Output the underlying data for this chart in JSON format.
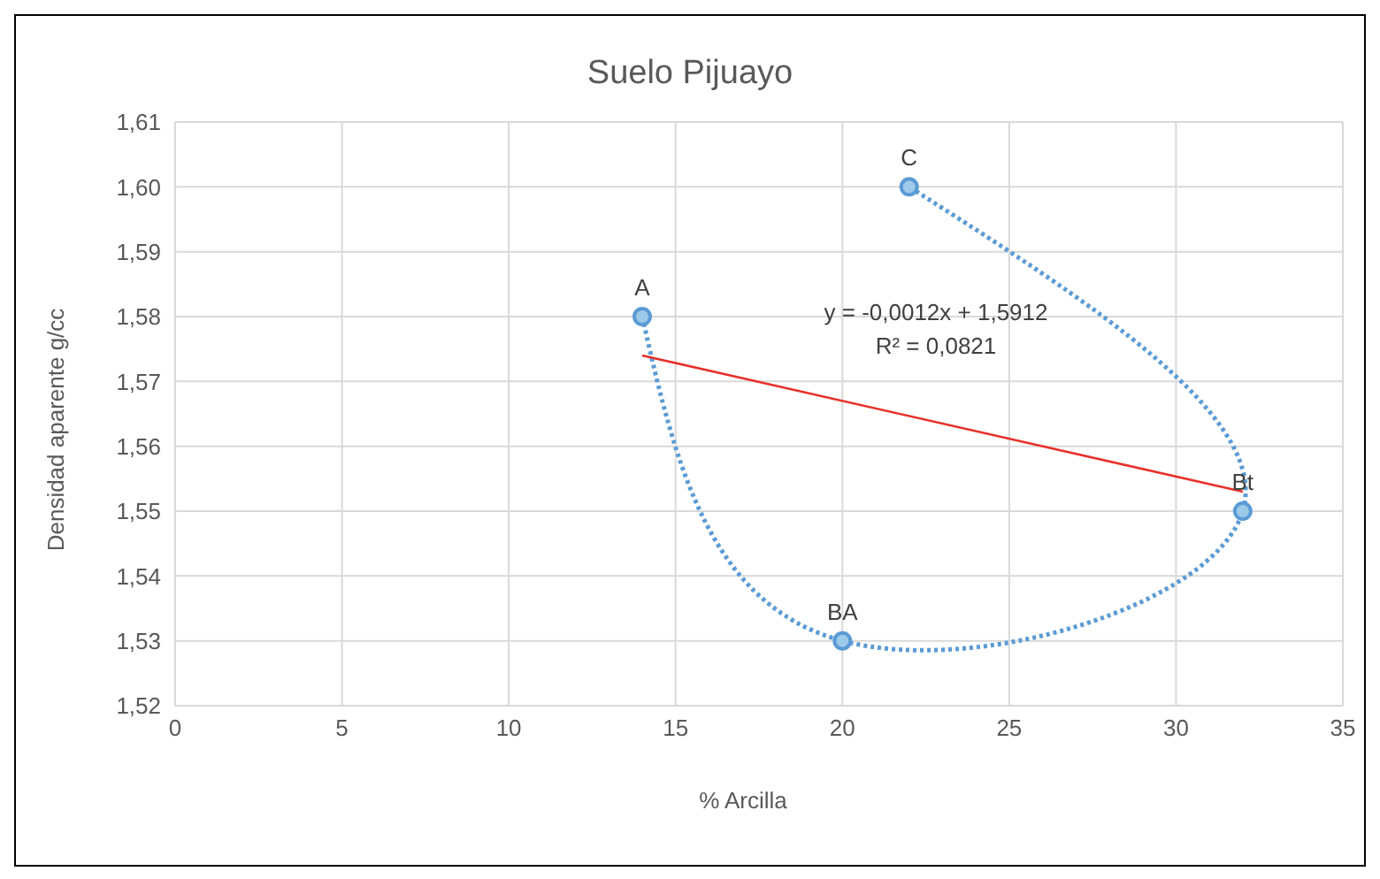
{
  "chart_data": {
    "type": "line",
    "title": "Suelo Pijuayo",
    "xlabel": "% Arcilla",
    "ylabel": "Densidad aparente g/cc",
    "series": [
      {
        "color": "#5b9bd5",
        "x": [
          14,
          20,
          32,
          22
        ],
        "values": [
          1.58,
          1.53,
          1.55,
          1.6
        ],
        "marker": "circle",
        "line_style": "dotted"
      },
      {
        "color": "#e8312a",
        "x": [
          14,
          32
        ],
        "values": [
          1.574,
          1.553
        ],
        "marker": "none",
        "line_style": "solid"
      }
    ],
    "annotations": [
      {
        "text": "A",
        "x": 14,
        "y": 1.58
      },
      {
        "text": "BA",
        "x": 20,
        "y": 1.53
      },
      {
        "text": "Bt",
        "x": 32,
        "y": 1.55
      },
      {
        "text": "C",
        "x": 22,
        "y": 1.6
      },
      "y = -0,0012x + 1,5912",
      "R² = 0,0821"
    ],
    "xlim": [
      0,
      35
    ],
    "xticks": [
      0,
      5,
      10,
      15,
      20,
      25,
      30,
      35
    ],
    "ylim": [
      1.52,
      1.61
    ],
    "yticks": [
      {
        "value": 1.52,
        "label": "1,52"
      },
      {
        "value": 1.53,
        "label": "1,53"
      },
      {
        "value": 1.54,
        "label": "1,54"
      },
      {
        "value": 1.55,
        "label": "1,55"
      },
      {
        "value": 1.56,
        "label": "1,56"
      },
      {
        "value": 1.57,
        "label": "1,57"
      },
      {
        "value": 1.58,
        "label": "1,58"
      },
      {
        "value": 1.59,
        "label": "1,59"
      },
      {
        "value": 1.6,
        "label": "1,60"
      },
      {
        "value": 1.61,
        "label": "1,61"
      }
    ],
    "grid": true
  }
}
